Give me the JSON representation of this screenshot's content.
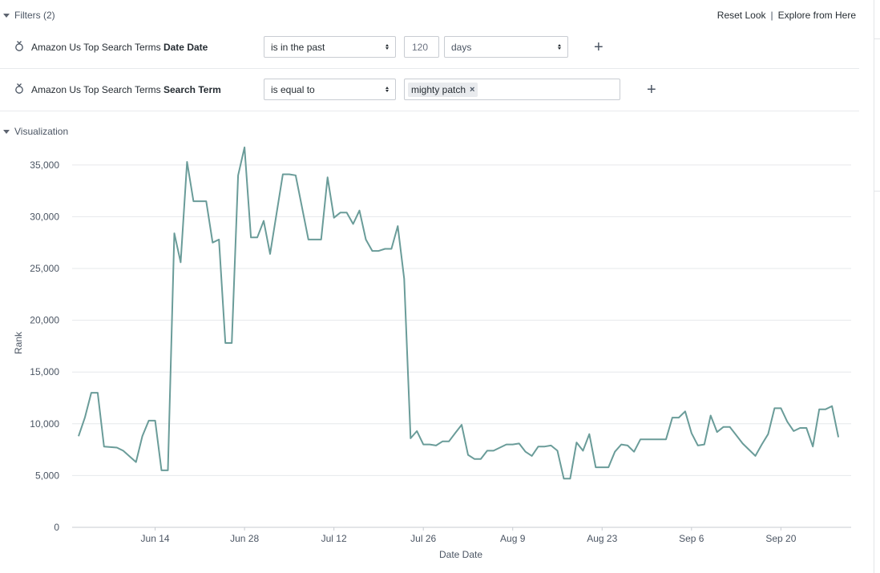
{
  "filters_header": {
    "label": "Filters (2)"
  },
  "actions": {
    "reset": "Reset Look",
    "separator": "|",
    "explore": "Explore from Here"
  },
  "filters": [
    {
      "field_prefix": "Amazon Us Top Search Terms",
      "field_name": "Date Date",
      "operator": "is in the past",
      "value": "120",
      "unit": "days"
    },
    {
      "field_prefix": "Amazon Us Top Search Terms",
      "field_name": "Search Term",
      "operator": "is equal to",
      "tag": "mighty patch",
      "tag_remove": "×"
    }
  ],
  "add_icon": "+",
  "visualization_header": {
    "label": "Visualization"
  },
  "chart_data": {
    "type": "line",
    "xlabel": "Date Date",
    "ylabel": "Rank",
    "ylim": [
      0,
      37000
    ],
    "yticks": [
      0,
      5000,
      10000,
      15000,
      20000,
      25000,
      30000,
      35000
    ],
    "ytick_labels": [
      "0",
      "5,000",
      "10,000",
      "15,000",
      "20,000",
      "25,000",
      "30,000",
      "35,000"
    ],
    "xtick_labels": [
      "Jun 14",
      "Jun 28",
      "Jul 12",
      "Jul 26",
      "Aug 9",
      "Aug 23",
      "Sep 6",
      "Sep 20"
    ],
    "xtick_dates": [
      "2021-06-14",
      "2021-06-28",
      "2021-07-12",
      "2021-07-26",
      "2021-08-09",
      "2021-08-23",
      "2021-09-06",
      "2021-09-20"
    ],
    "grid": true,
    "line_color": "#6a9c99",
    "series": [
      {
        "x": [
          "2021-06-02",
          "2021-06-03",
          "2021-06-04",
          "2021-06-05",
          "2021-06-06",
          "2021-06-08",
          "2021-06-09",
          "2021-06-11",
          "2021-06-12",
          "2021-06-13",
          "2021-06-14",
          "2021-06-15",
          "2021-06-16",
          "2021-06-17",
          "2021-06-18",
          "2021-06-19",
          "2021-06-20",
          "2021-06-21",
          "2021-06-22",
          "2021-06-23",
          "2021-06-24",
          "2021-06-25",
          "2021-06-26",
          "2021-06-27",
          "2021-06-28",
          "2021-06-29",
          "2021-06-30",
          "2021-07-01",
          "2021-07-02",
          "2021-07-04",
          "2021-07-05",
          "2021-07-06",
          "2021-07-08",
          "2021-07-10",
          "2021-07-11",
          "2021-07-12",
          "2021-07-13",
          "2021-07-14",
          "2021-07-15",
          "2021-07-16",
          "2021-07-17",
          "2021-07-18",
          "2021-07-19",
          "2021-07-20",
          "2021-07-21",
          "2021-07-22",
          "2021-07-23",
          "2021-07-24",
          "2021-07-25",
          "2021-07-26",
          "2021-07-27",
          "2021-07-28",
          "2021-07-29",
          "2021-07-30",
          "2021-07-31",
          "2021-08-01",
          "2021-08-02",
          "2021-08-03",
          "2021-08-04",
          "2021-08-05",
          "2021-08-06",
          "2021-08-07",
          "2021-08-08",
          "2021-08-09",
          "2021-08-10",
          "2021-08-11",
          "2021-08-12",
          "2021-08-13",
          "2021-08-14",
          "2021-08-15",
          "2021-08-16",
          "2021-08-17",
          "2021-08-18",
          "2021-08-19",
          "2021-08-20",
          "2021-08-21",
          "2021-08-22",
          "2021-08-24",
          "2021-08-25",
          "2021-08-26",
          "2021-08-27",
          "2021-08-28",
          "2021-08-29",
          "2021-09-02",
          "2021-09-03",
          "2021-09-04",
          "2021-09-05",
          "2021-09-06",
          "2021-09-07",
          "2021-09-08",
          "2021-09-09",
          "2021-09-10",
          "2021-09-11",
          "2021-09-12",
          "2021-09-13",
          "2021-09-14",
          "2021-09-16",
          "2021-09-17",
          "2021-09-18",
          "2021-09-19",
          "2021-09-20",
          "2021-09-21",
          "2021-09-22",
          "2021-09-23",
          "2021-09-24",
          "2021-09-25",
          "2021-09-26",
          "2021-09-27",
          "2021-09-28",
          "2021-09-29"
        ],
        "y": [
          8800,
          10600,
          13000,
          13000,
          7800,
          7700,
          7400,
          6300,
          8800,
          10300,
          10300,
          5500,
          5500,
          28400,
          25600,
          35300,
          31500,
          31500,
          31500,
          27500,
          27800,
          17800,
          17800,
          34000,
          36700,
          28000,
          28000,
          29600,
          26400,
          34100,
          34100,
          34000,
          27800,
          27800,
          33800,
          29900,
          30400,
          30400,
          29300,
          30600,
          27800,
          26700,
          26700,
          26900,
          26900,
          29100,
          24000,
          8600,
          9300,
          8000,
          8000,
          7900,
          8300,
          8300,
          9100,
          9900,
          7000,
          6600,
          6600,
          7400,
          7400,
          7700,
          8000,
          8000,
          8100,
          7300,
          6900,
          7800,
          7800,
          7900,
          7400,
          4700,
          4700,
          8200,
          7400,
          9000,
          5800,
          5800,
          7300,
          8000,
          7900,
          7300,
          8500,
          8500,
          10600,
          10600,
          11200,
          9100,
          7900,
          8000,
          10800,
          9200,
          9700,
          9700,
          8900,
          8100,
          6900,
          8000,
          9000,
          11500,
          11500,
          10200,
          9300,
          9600,
          9600,
          7800,
          11400,
          11400,
          11700,
          8700
        ]
      }
    ]
  }
}
